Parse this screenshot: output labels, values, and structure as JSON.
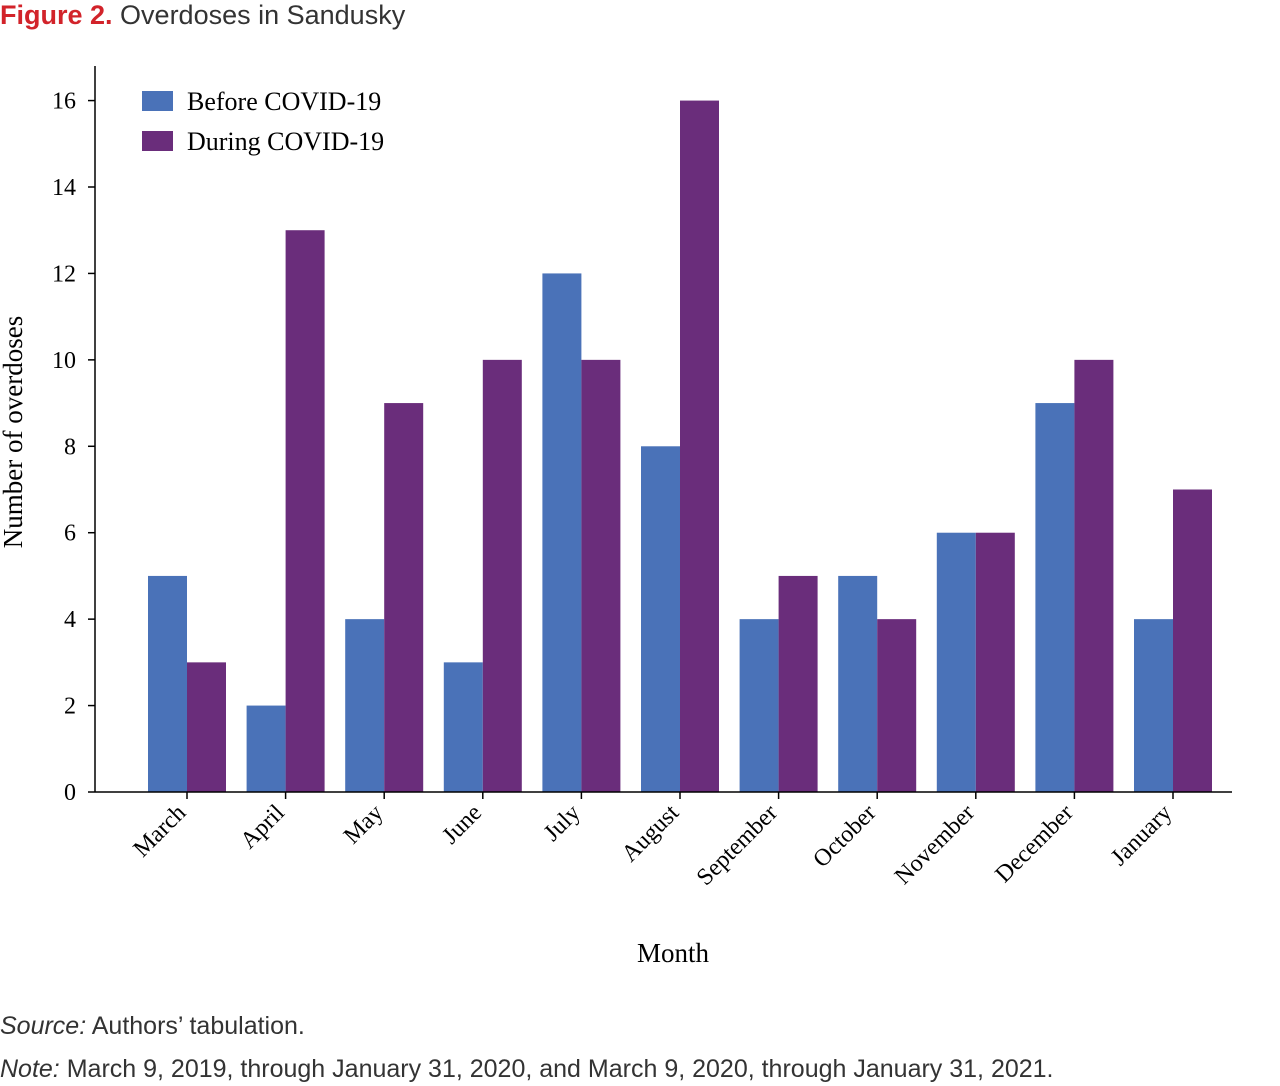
{
  "figure": {
    "label": "Figure 2.",
    "title": "Overdoses in Sandusky"
  },
  "chart_data": {
    "type": "bar",
    "title": "Overdoses in Sandusky",
    "xlabel": "Month",
    "ylabel": "Number of overdoses",
    "ylim": [
      0,
      16.8
    ],
    "yticks": [
      0,
      2,
      4,
      6,
      8,
      10,
      12,
      14,
      16
    ],
    "categories": [
      "March",
      "April",
      "May",
      "June",
      "July",
      "August",
      "September",
      "October",
      "November",
      "December",
      "January"
    ],
    "series": [
      {
        "name": "Before COVID-19",
        "color": "#4a72b8",
        "values": [
          5,
          2,
          4,
          3,
          12,
          8,
          4,
          5,
          6,
          9,
          4
        ]
      },
      {
        "name": "During COVID-19",
        "color": "#6a2d7b",
        "values": [
          3,
          13,
          9,
          10,
          10,
          16,
          5,
          4,
          6,
          10,
          7
        ]
      }
    ],
    "legend_position": "top-left",
    "grid": false
  },
  "footnotes": {
    "source_lead": "Source:",
    "source_text": "Authors’ tabulation.",
    "note_lead": "Note:",
    "note_text": "March 9, 2019, through January 31, 2020, and March 9, 2020, through January 31, 2021."
  }
}
